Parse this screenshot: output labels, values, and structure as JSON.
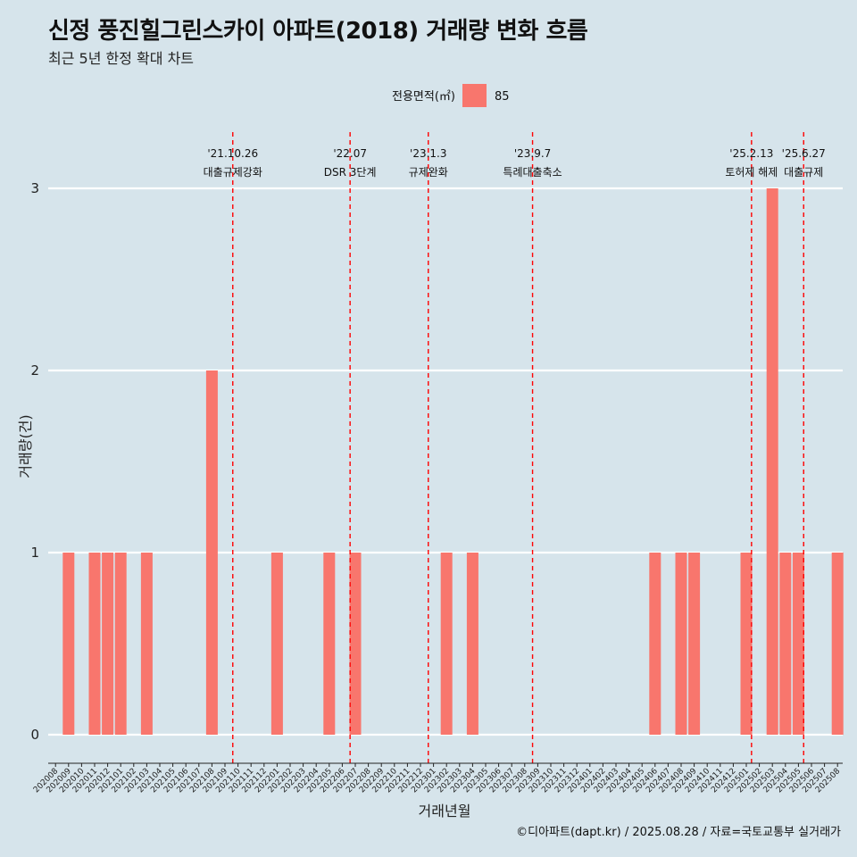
{
  "header": {
    "title": "신정 풍진힐그린스카이 아파트(2018) 거래량 변화 흐름",
    "subtitle": "최근 5년 한정 확대 차트"
  },
  "footer": {
    "caption": "©디아파트(dapt.kr) / 2025.08.28 / 자료=국토교통부 실거래가"
  },
  "colors": {
    "background": "#d6e4eb",
    "bar": "#f8766d",
    "grid": "#ffffff",
    "event_line": "#ff0000"
  },
  "chart_data": {
    "type": "bar",
    "xlabel": "거래년월",
    "ylabel": "거래량(건)",
    "ylim": [
      0,
      3
    ],
    "yticks": [
      0,
      1,
      2,
      3
    ],
    "legend": {
      "title": "전용면적(㎡)",
      "entries": [
        "85"
      ],
      "position": "top"
    },
    "categories": [
      "202008",
      "202009",
      "202010",
      "202011",
      "202012",
      "202101",
      "202102",
      "202103",
      "202104",
      "202105",
      "202106",
      "202107",
      "202108",
      "202109",
      "202110",
      "202111",
      "202112",
      "202201",
      "202202",
      "202203",
      "202204",
      "202205",
      "202206",
      "202207",
      "202208",
      "202209",
      "202210",
      "202211",
      "202212",
      "202301",
      "202302",
      "202303",
      "202304",
      "202305",
      "202306",
      "202307",
      "202308",
      "202309",
      "202310",
      "202311",
      "202312",
      "202401",
      "202402",
      "202403",
      "202404",
      "202405",
      "202406",
      "202407",
      "202408",
      "202409",
      "202410",
      "202411",
      "202412",
      "202501",
      "202502",
      "202503",
      "202504",
      "202505",
      "202506",
      "202507",
      "202508"
    ],
    "series": [
      {
        "name": "85",
        "values": [
          0,
          1,
          0,
          1,
          1,
          1,
          0,
          1,
          0,
          0,
          0,
          0,
          2,
          0,
          0,
          0,
          0,
          1,
          0,
          0,
          0,
          1,
          0,
          1,
          0,
          0,
          0,
          0,
          0,
          0,
          1,
          0,
          1,
          0,
          0,
          0,
          0,
          0,
          0,
          0,
          0,
          0,
          0,
          0,
          0,
          0,
          1,
          0,
          1,
          1,
          0,
          0,
          0,
          1,
          0,
          3,
          1,
          1,
          0,
          0,
          1
        ]
      }
    ],
    "annotations": [
      {
        "date_label": "'21.10.26",
        "text": "대출규제강화",
        "position": 13.6
      },
      {
        "date_label": "'22.07",
        "text": "DSR 3단계",
        "position": 22.6
      },
      {
        "date_label": "'23.1.3",
        "text": "규제완화",
        "position": 28.6
      },
      {
        "date_label": "'23.9.7",
        "text": "특례대출축소",
        "position": 36.6
      },
      {
        "date_label": "'25.2.13",
        "text": "토허제 해제",
        "position": 53.4
      },
      {
        "date_label": "'25.6.27",
        "text": "대출규제",
        "position": 57.4
      }
    ]
  }
}
